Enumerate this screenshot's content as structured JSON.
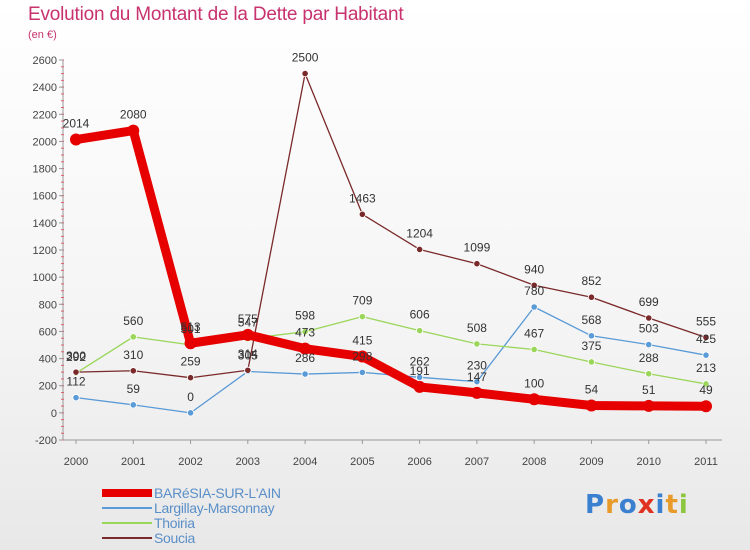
{
  "header": {
    "title": "Evolution du Montant de la Dette par Habitant",
    "subtitle": "(en €)"
  },
  "brand": {
    "letters": [
      "P",
      "r",
      "o",
      "x",
      "i",
      "t",
      "i"
    ],
    "colors": [
      "#3a7fd0",
      "#e89a2a",
      "#3a7fd0",
      "#e03020",
      "#3a7fd0",
      "#e89a2a",
      "#8cc63e"
    ]
  },
  "chart_data": {
    "type": "line",
    "x": [
      "2000",
      "2001",
      "2002",
      "2003",
      "2004",
      "2005",
      "2006",
      "2007",
      "2008",
      "2009",
      "2010",
      "2011"
    ],
    "ylim": [
      -200,
      2600
    ],
    "yticks": [
      "-200",
      "0",
      "200",
      "400",
      "600",
      "800",
      "1000",
      "1200",
      "1400",
      "1600",
      "1800",
      "2000",
      "2200",
      "2400",
      "2600"
    ],
    "grid": false,
    "legend_position": "bottom-left",
    "series": [
      {
        "name": "BARéSIA-SUR-L'AIN",
        "color": "#e60000",
        "values": [
          2014,
          2080,
          513,
          575,
          473,
          415,
          191,
          147,
          100,
          54,
          51,
          49
        ],
        "labels": [
          "2014",
          "2080",
          "513",
          "575",
          "473",
          "415",
          "191",
          "147",
          "100",
          "54",
          "51",
          "49"
        ]
      },
      {
        "name": "Largillay-Marsonnay",
        "color": "#5a9ad6",
        "values": [
          112,
          59,
          0,
          305,
          286,
          298,
          262,
          230,
          780,
          568,
          503,
          425
        ],
        "labels": [
          "112",
          "59",
          "0",
          "305",
          "286",
          "298",
          "262",
          "230",
          "780",
          "568",
          "503",
          "425"
        ]
      },
      {
        "name": "Thoiria",
        "color": "#9ad65a",
        "values": [
          292,
          560,
          501,
          547,
          598,
          709,
          606,
          508,
          467,
          375,
          288,
          213
        ],
        "labels": [
          "292",
          "560",
          "501",
          "547",
          "598",
          "709",
          "606",
          "508",
          "467",
          "375",
          "288",
          "213"
        ]
      },
      {
        "name": "Soucia",
        "color": "#7a2a2a",
        "values": [
          300,
          310,
          259,
          314,
          2500,
          1463,
          1204,
          1099,
          940,
          852,
          699,
          555
        ],
        "labels": [
          "300",
          "310",
          "259",
          "314",
          "2500",
          "1463",
          "1204",
          "1099",
          "940",
          "852",
          "699",
          "555"
        ]
      }
    ]
  }
}
